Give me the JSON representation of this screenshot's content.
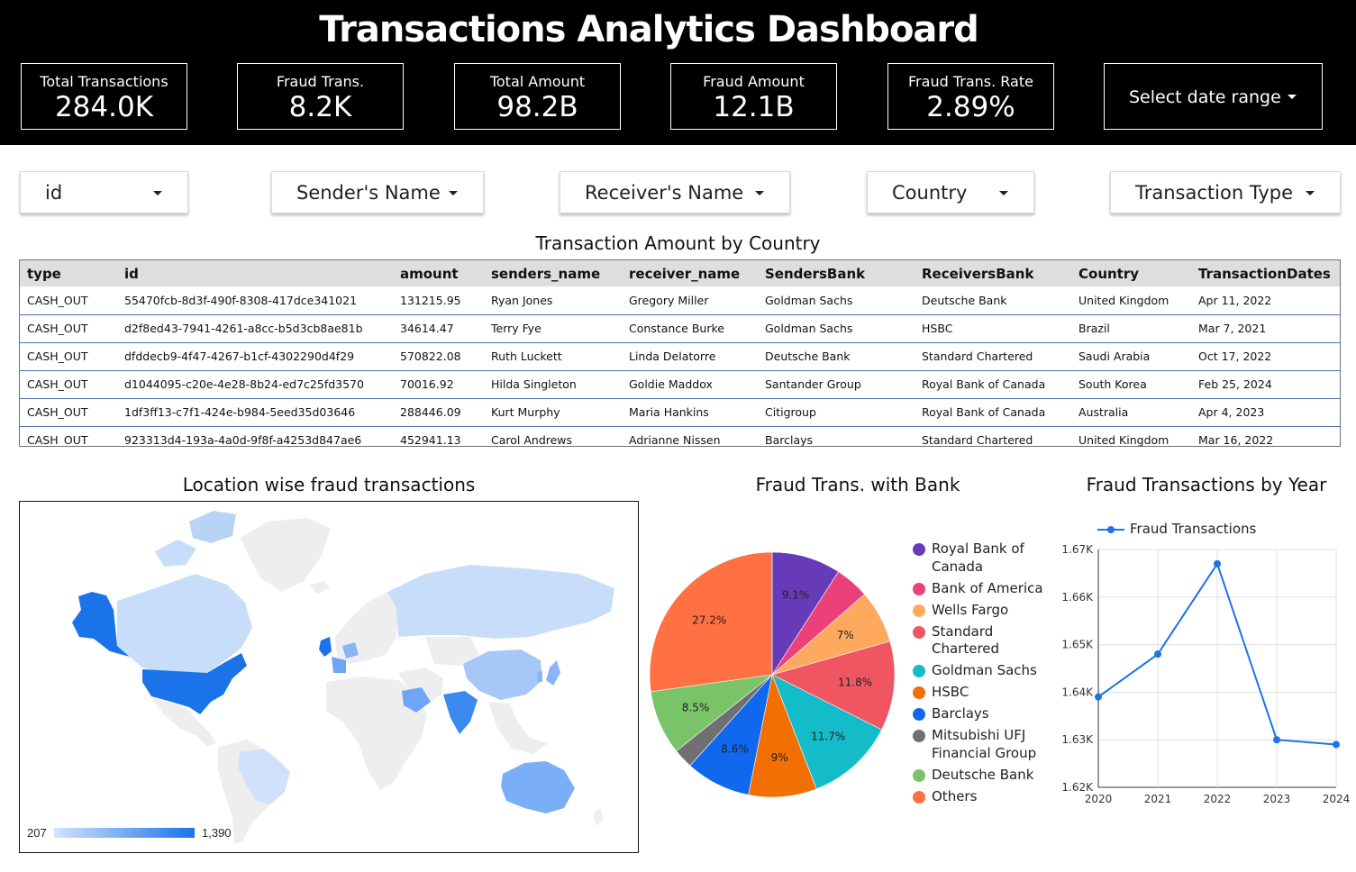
{
  "header": {
    "title": "Transactions Analytics Dashboard",
    "kpis": [
      {
        "label": "Total Transactions",
        "value": "284.0K"
      },
      {
        "label": "Fraud Trans.",
        "value": "8.2K"
      },
      {
        "label": "Total Amount",
        "value": "98.2B"
      },
      {
        "label": "Fraud Amount",
        "value": "12.1B"
      },
      {
        "label": "Fraud Trans. Rate",
        "value": "2.89%"
      }
    ],
    "date_range_label": "Select date range"
  },
  "filters": [
    {
      "label": "id"
    },
    {
      "label": "Sender's Name"
    },
    {
      "label": "Receiver's Name"
    },
    {
      "label": "Country"
    },
    {
      "label": "Transaction Type"
    }
  ],
  "table": {
    "title": "Transaction Amount by Country",
    "columns": [
      "type",
      "id",
      "amount",
      "senders_name",
      "receiver_name",
      "SendersBank",
      "ReceiversBank",
      "Country",
      "TransactionDates"
    ],
    "rows": [
      [
        "CASH_OUT",
        "55470fcb-8d3f-490f-8308-417dce341021",
        "131215.95",
        "Ryan Jones",
        "Gregory Miller",
        "Goldman Sachs",
        "Deutsche Bank",
        "United Kingdom",
        "Apr 11, 2022"
      ],
      [
        "CASH_OUT",
        "d2f8ed43-7941-4261-a8cc-b5d3cb8ae81b",
        "34614.47",
        "Terry Fye",
        "Constance Burke",
        "Goldman Sachs",
        "HSBC",
        "Brazil",
        "Mar 7, 2021"
      ],
      [
        "CASH_OUT",
        "dfddecb9-4f47-4267-b1cf-4302290d4f29",
        "570822.08",
        "Ruth Luckett",
        "Linda Delatorre",
        "Deutsche Bank",
        "Standard Chartered",
        "Saudi Arabia",
        "Oct 17, 2022"
      ],
      [
        "CASH_OUT",
        "d1044095-c20e-4e28-8b24-ed7c25fd3570",
        "70016.92",
        "Hilda Singleton",
        "Goldie Maddox",
        "Santander Group",
        "Royal Bank of Canada",
        "South Korea",
        "Feb 25, 2024"
      ],
      [
        "CASH_OUT",
        "1df3ff13-c7f1-424e-b984-5eed35d03646",
        "288446.09",
        "Kurt Murphy",
        "Maria Hankins",
        "Citigroup",
        "Royal Bank of Canada",
        "Australia",
        "Apr 4, 2023"
      ],
      [
        "CASH_OUT",
        "923313d4-193a-4a0d-9f8f-a4253d847ae6",
        "452941.13",
        "Carol Andrews",
        "Adrianne Nissen",
        "Barclays",
        "Standard Chartered",
        "United Kingdom",
        "Mar 16, 2022"
      ]
    ]
  },
  "map": {
    "title": "Location wise fraud transactions",
    "legend_min": "207",
    "legend_max": "1,390",
    "scale_colors": {
      "low": "#d2e3fc",
      "high": "#1a73e8",
      "no_data": "#eeeeee"
    }
  },
  "chart_data": [
    {
      "type": "pie",
      "title": "Fraud Trans. with Bank",
      "slices": [
        {
          "name": "Royal Bank of Canada",
          "value": 9.1,
          "label": "9.1%",
          "color": "#673ab7"
        },
        {
          "name": "Bank of America",
          "value": 4.5,
          "label": "",
          "color": "#ec407a"
        },
        {
          "name": "Wells Fargo",
          "value": 7.0,
          "label": "7%",
          "color": "#ffa95e"
        },
        {
          "name": "Standard Chartered",
          "value": 11.8,
          "label": "11.8%",
          "color": "#ef5662"
        },
        {
          "name": "Goldman Sachs",
          "value": 11.7,
          "label": "11.7%",
          "color": "#13bcc8"
        },
        {
          "name": "HSBC",
          "value": 9.0,
          "label": "9%",
          "color": "#f26f04"
        },
        {
          "name": "Barclays",
          "value": 8.6,
          "label": "8.6%",
          "color": "#1068ef"
        },
        {
          "name": "Mitsubishi UFJ Financial Group",
          "value": 2.6,
          "label": "",
          "color": "#707070"
        },
        {
          "name": "Deutsche Bank",
          "value": 8.5,
          "label": "8.5%",
          "color": "#79c368"
        },
        {
          "name": "Others",
          "value": 27.2,
          "label": "27.2%",
          "color": "#ff7043"
        }
      ]
    },
    {
      "type": "line",
      "title": "Fraud Transactions by Year",
      "x": [
        2020,
        2021,
        2022,
        2023,
        2024
      ],
      "series": [
        {
          "name": "Fraud Transactions",
          "values": [
            1639,
            1648,
            1667,
            1630,
            1629
          ],
          "color": "#1a73e8"
        }
      ],
      "ylim": [
        1620,
        1670
      ],
      "yticks": [
        1620,
        1630,
        1640,
        1650,
        1660,
        1670
      ],
      "ytick_labels": [
        "1.62K",
        "1.63K",
        "1.64K",
        "1.65K",
        "1.66K",
        "1.67K"
      ],
      "grid": true
    }
  ]
}
